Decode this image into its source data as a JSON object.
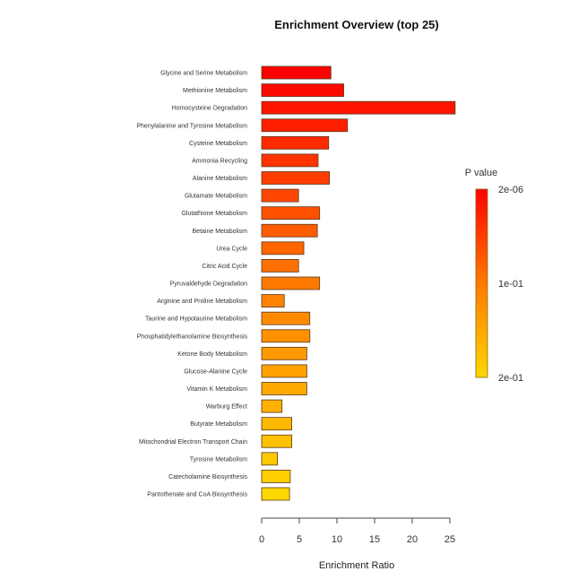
{
  "chart_data": {
    "type": "bar",
    "orientation": "horizontal",
    "title": "Enrichment Overview (top 25)",
    "xlabel": "Enrichment Ratio",
    "ylabel": "",
    "xlim": [
      0,
      25
    ],
    "xticks": [
      "0",
      "5",
      "10",
      "15",
      "20",
      "25"
    ],
    "categories": [
      "Glycine and Serine Metabolism",
      "Methionine Metabolism",
      "Homocysteine Degradation",
      "Phenylalanine and Tyrosine Metabolism",
      "Cysteine Metabolism",
      "Ammonia Recycling",
      "Alanine Metabolism",
      "Glutamate Metabolism",
      "Glutathione Metabolism",
      "Betaine Metabolism",
      "Urea Cycle",
      "Citric Acid Cycle",
      "Pyruvaldehyde Degradation",
      "Arginine and Proline Metabolism",
      "Taurine and Hypotaurine Metabolism",
      "Phosphatidylethanolamine Biosynthesis",
      "Ketone Body Metabolism",
      "Glucose-Alanine Cycle",
      "Vitamin K Metabolism",
      "Warburg Effect",
      "Butyrate Metabolism",
      "Mitochondrial Electron Transport Chain",
      "Tyrosine Metabolism",
      "Catecholamine Biosynthesis",
      "Pantothenate and CoA Biosynthesis"
    ],
    "values": [
      9.2,
      10.9,
      25.7,
      11.4,
      8.9,
      7.5,
      9.0,
      4.9,
      7.7,
      7.4,
      5.6,
      4.9,
      7.7,
      3.0,
      6.4,
      6.4,
      6.0,
      6.0,
      6.0,
      2.7,
      4.0,
      4.0,
      2.1,
      3.8,
      3.7
    ],
    "colorbar": {
      "title": "P value",
      "labels": [
        "2e-06",
        "1e-01",
        "2e-01"
      ],
      "color_low": "#ff0000",
      "color_mid": "#ff7a00",
      "color_high": "#ffd700"
    },
    "grid": false,
    "legend": "right"
  }
}
